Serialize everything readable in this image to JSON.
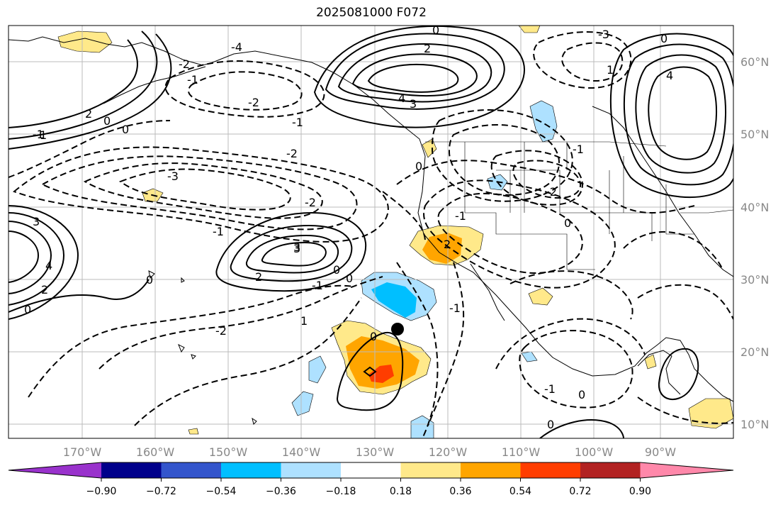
{
  "title": "2025081000 F072",
  "lon_labels": [
    "170°W",
    "160°W",
    "150°W",
    "140°W",
    "130°W",
    "120°W",
    "110°W",
    "100°W",
    "90°W"
  ],
  "lat_labels": [
    "60°N",
    "50°N",
    "40°N",
    "30°N",
    "20°N",
    "10°N"
  ],
  "colorbar": {
    "colors": [
      "#9932cc",
      "#00008b",
      "#3355cc",
      "#00bfff",
      "#aee1ff",
      "#ffffff",
      "#ffe98a",
      "#ffa500",
      "#ff3d00",
      "#b22222",
      "#ff88aa"
    ],
    "tick_labels": [
      "−0.90",
      "−0.72",
      "−0.54",
      "−0.36",
      "−0.18",
      "0.18",
      "0.36",
      "0.54",
      "0.72",
      "0.90"
    ]
  },
  "contour_labels": {
    "l1": "-1",
    "l2": "-2",
    "l3": "-2",
    "l4": "-3",
    "l5": "-2",
    "l6": "-1",
    "l7": "0",
    "l8": "0",
    "l9": "1",
    "l10": "2",
    "l11": "3",
    "l12": "4",
    "l13": "2",
    "l14": "0",
    "l15": "3",
    "l16": "4",
    "l17": "-4",
    "l18": "-2",
    "l19": "-1",
    "l20": "0",
    "l21": "2",
    "l22": "3",
    "l23": "-1",
    "l24": "0",
    "l25": "-1",
    "l26": "-2",
    "l27": "0",
    "l28": "-3",
    "l29": "1",
    "l30": "4",
    "l31": "0",
    "l32": "-1",
    "l33": "0",
    "l34": "0",
    "l35": "-1",
    "l36": "0",
    "l37": "0",
    "l38": "1",
    "l39": "0",
    "l40": "2",
    "l41": "3",
    "l42": "2",
    "l43": "-2",
    "l44": "-1",
    "l45": "0",
    "l46": "-1"
  }
}
